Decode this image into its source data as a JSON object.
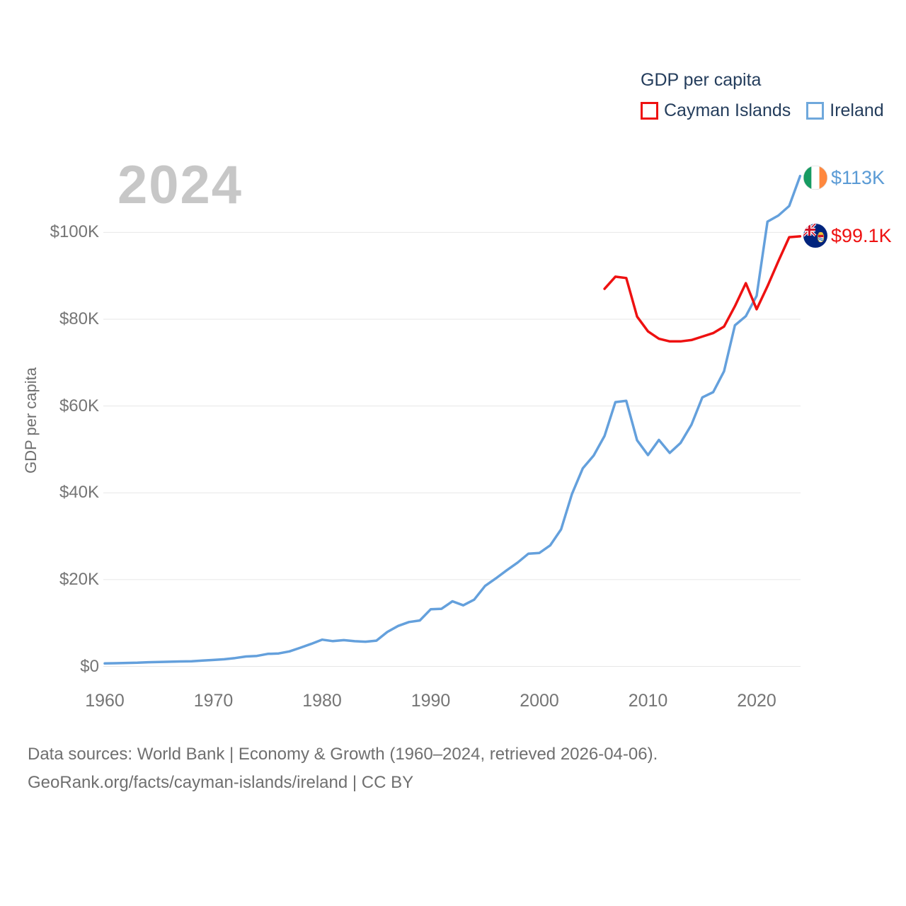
{
  "legend": {
    "title": "GDP per capita",
    "items": [
      {
        "label": "Cayman Islands",
        "color": "#ee1111"
      },
      {
        "label": "Ireland",
        "color": "#6fa8dc"
      }
    ]
  },
  "watermark_year": "2024",
  "chart_data": {
    "type": "line",
    "title": "GDP per capita",
    "xlabel": "",
    "ylabel": "GDP per capita",
    "grid": "horizontal",
    "legend_position": "top-right",
    "xlim": [
      1959.9,
      2025.7
    ],
    "ylim": [
      0,
      114500
    ],
    "x_ticks": [
      1960,
      1970,
      1980,
      1990,
      2000,
      2010,
      2020
    ],
    "y_ticks": [
      {
        "value": 0,
        "label": "$0"
      },
      {
        "value": 20000,
        "label": "$20K"
      },
      {
        "value": 40000,
        "label": "$40K"
      },
      {
        "value": 60000,
        "label": "$60K"
      },
      {
        "value": 80000,
        "label": "$80K"
      },
      {
        "value": 100000,
        "label": "$100K"
      }
    ],
    "series": [
      {
        "name": "Ireland",
        "color": "#64a0dc",
        "end_label": "$113K",
        "end_label_color": "#5b9bd5",
        "flag": "ireland",
        "start_year": 1960,
        "end_year": 2024,
        "values": [
          690,
          740,
          800,
          850,
          970,
          1020,
          1070,
          1140,
          1190,
          1340,
          1490,
          1640,
          1920,
          2280,
          2410,
          2890,
          2990,
          3460,
          4300,
          5190,
          6160,
          5830,
          6050,
          5800,
          5690,
          5930,
          7920,
          9330,
          10230,
          10580,
          13160,
          13280,
          15010,
          14080,
          15380,
          18540,
          20290,
          22150,
          23920,
          25980,
          26150,
          27900,
          31570,
          39700,
          45650,
          48600,
          53100,
          60900,
          61200,
          52100,
          48700,
          52200,
          49200,
          51500,
          55700,
          62000,
          63200,
          68000,
          78600,
          80700,
          85400,
          102500,
          103900,
          106100,
          113000
        ]
      },
      {
        "name": "Cayman Islands",
        "color": "#ee1111",
        "end_label": "$99.1K",
        "end_label_color": "#ee1111",
        "flag": "cayman-islands",
        "start_year": 2006,
        "end_year": 2024,
        "values": [
          87000,
          89800,
          89500,
          80600,
          77200,
          75500,
          74900,
          74900,
          75200,
          76000,
          76800,
          78300,
          83000,
          88300,
          82300,
          87600,
          93400,
          98900,
          99100
        ]
      }
    ]
  },
  "footer": {
    "line1": "Data sources: World Bank | Economy & Growth (1960–2024, retrieved 2026-04-06).",
    "line2": "GeoRank.org/facts/cayman-islands/ireland | CC BY"
  }
}
